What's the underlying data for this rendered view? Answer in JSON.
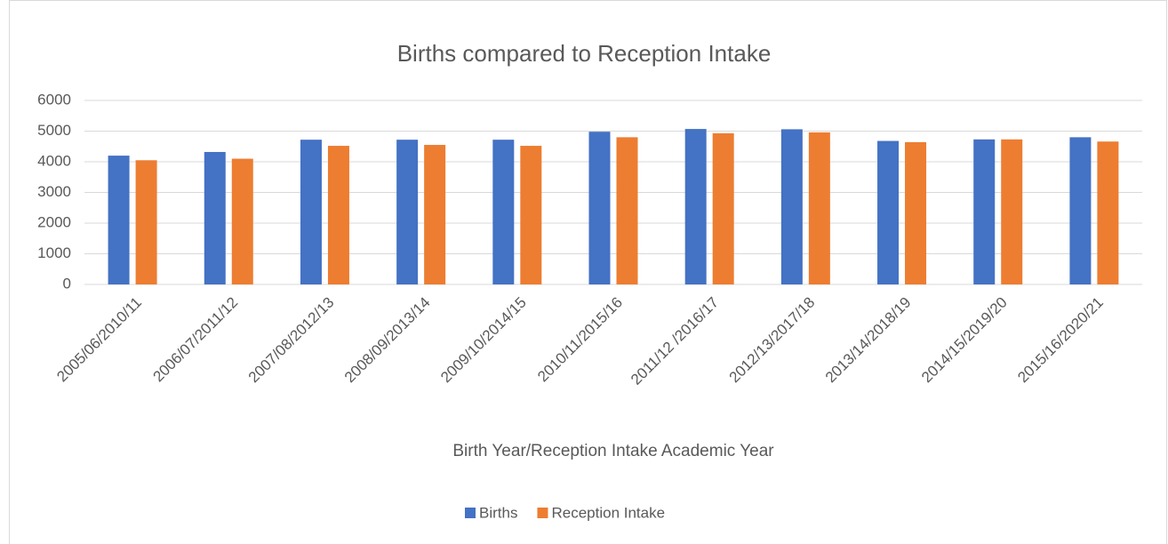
{
  "chart_data": {
    "type": "bar",
    "title": "Births compared to Reception Intake",
    "x_label": "Birth Year/Reception Intake Academic Year",
    "categories": [
      "2005/06/2010/11",
      "2006/07/2011/12",
      "2007/08/2012/13",
      "2008/09/2013/14",
      "2009/10/2014/15",
      "2010/11/2015/16",
      "2011/12 /2016/17",
      "2012/13/2017/18",
      "2013/14/2018/19",
      "2014/15/2019/20",
      "2015/16/2020/21"
    ],
    "series": [
      {
        "name": "Births",
        "color": "#4472c4",
        "values": [
          4200,
          4320,
          4720,
          4720,
          4720,
          4980,
          5070,
          5060,
          4680,
          4730,
          4800
        ]
      },
      {
        "name": "Reception Intake",
        "color": "#ed7d31",
        "values": [
          4050,
          4100,
          4520,
          4550,
          4520,
          4800,
          4930,
          4960,
          4640,
          4730,
          4660
        ]
      }
    ],
    "ylim": [
      0,
      6000
    ],
    "yticks": [
      0,
      1000,
      2000,
      3000,
      4000,
      5000,
      6000
    ],
    "grid": true,
    "legend": "bottom"
  }
}
